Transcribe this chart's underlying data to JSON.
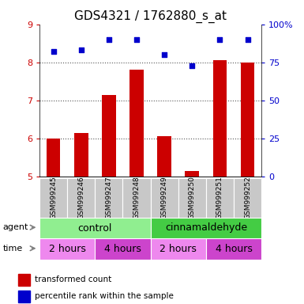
{
  "title": "GDS4321 / 1762880_s_at",
  "samples": [
    "GSM999245",
    "GSM999246",
    "GSM999247",
    "GSM999248",
    "GSM999249",
    "GSM999250",
    "GSM999251",
    "GSM999252"
  ],
  "bar_values": [
    6.0,
    6.15,
    7.15,
    7.8,
    6.05,
    5.15,
    8.05,
    8.0
  ],
  "dot_values": [
    82,
    83,
    90,
    90,
    80,
    73,
    90,
    90
  ],
  "ylim_left": [
    5,
    9
  ],
  "ylim_right": [
    0,
    100
  ],
  "yticks_left": [
    5,
    6,
    7,
    8,
    9
  ],
  "yticks_right": [
    0,
    25,
    50,
    75,
    100
  ],
  "bar_color": "#cc0000",
  "dot_color": "#0000cc",
  "bar_bottom": 5.0,
  "agent_color_light": "#90ee90",
  "agent_color_green": "#44cc44",
  "time_color_light": "#ee88ee",
  "time_color_med": "#cc44cc",
  "sample_bg": "#c8c8c8",
  "legend_red_label": "transformed count",
  "legend_blue_label": "percentile rank within the sample",
  "dotted_line_color": "#555555",
  "title_fontsize": 11,
  "tick_fontsize": 8,
  "label_fontsize": 9
}
